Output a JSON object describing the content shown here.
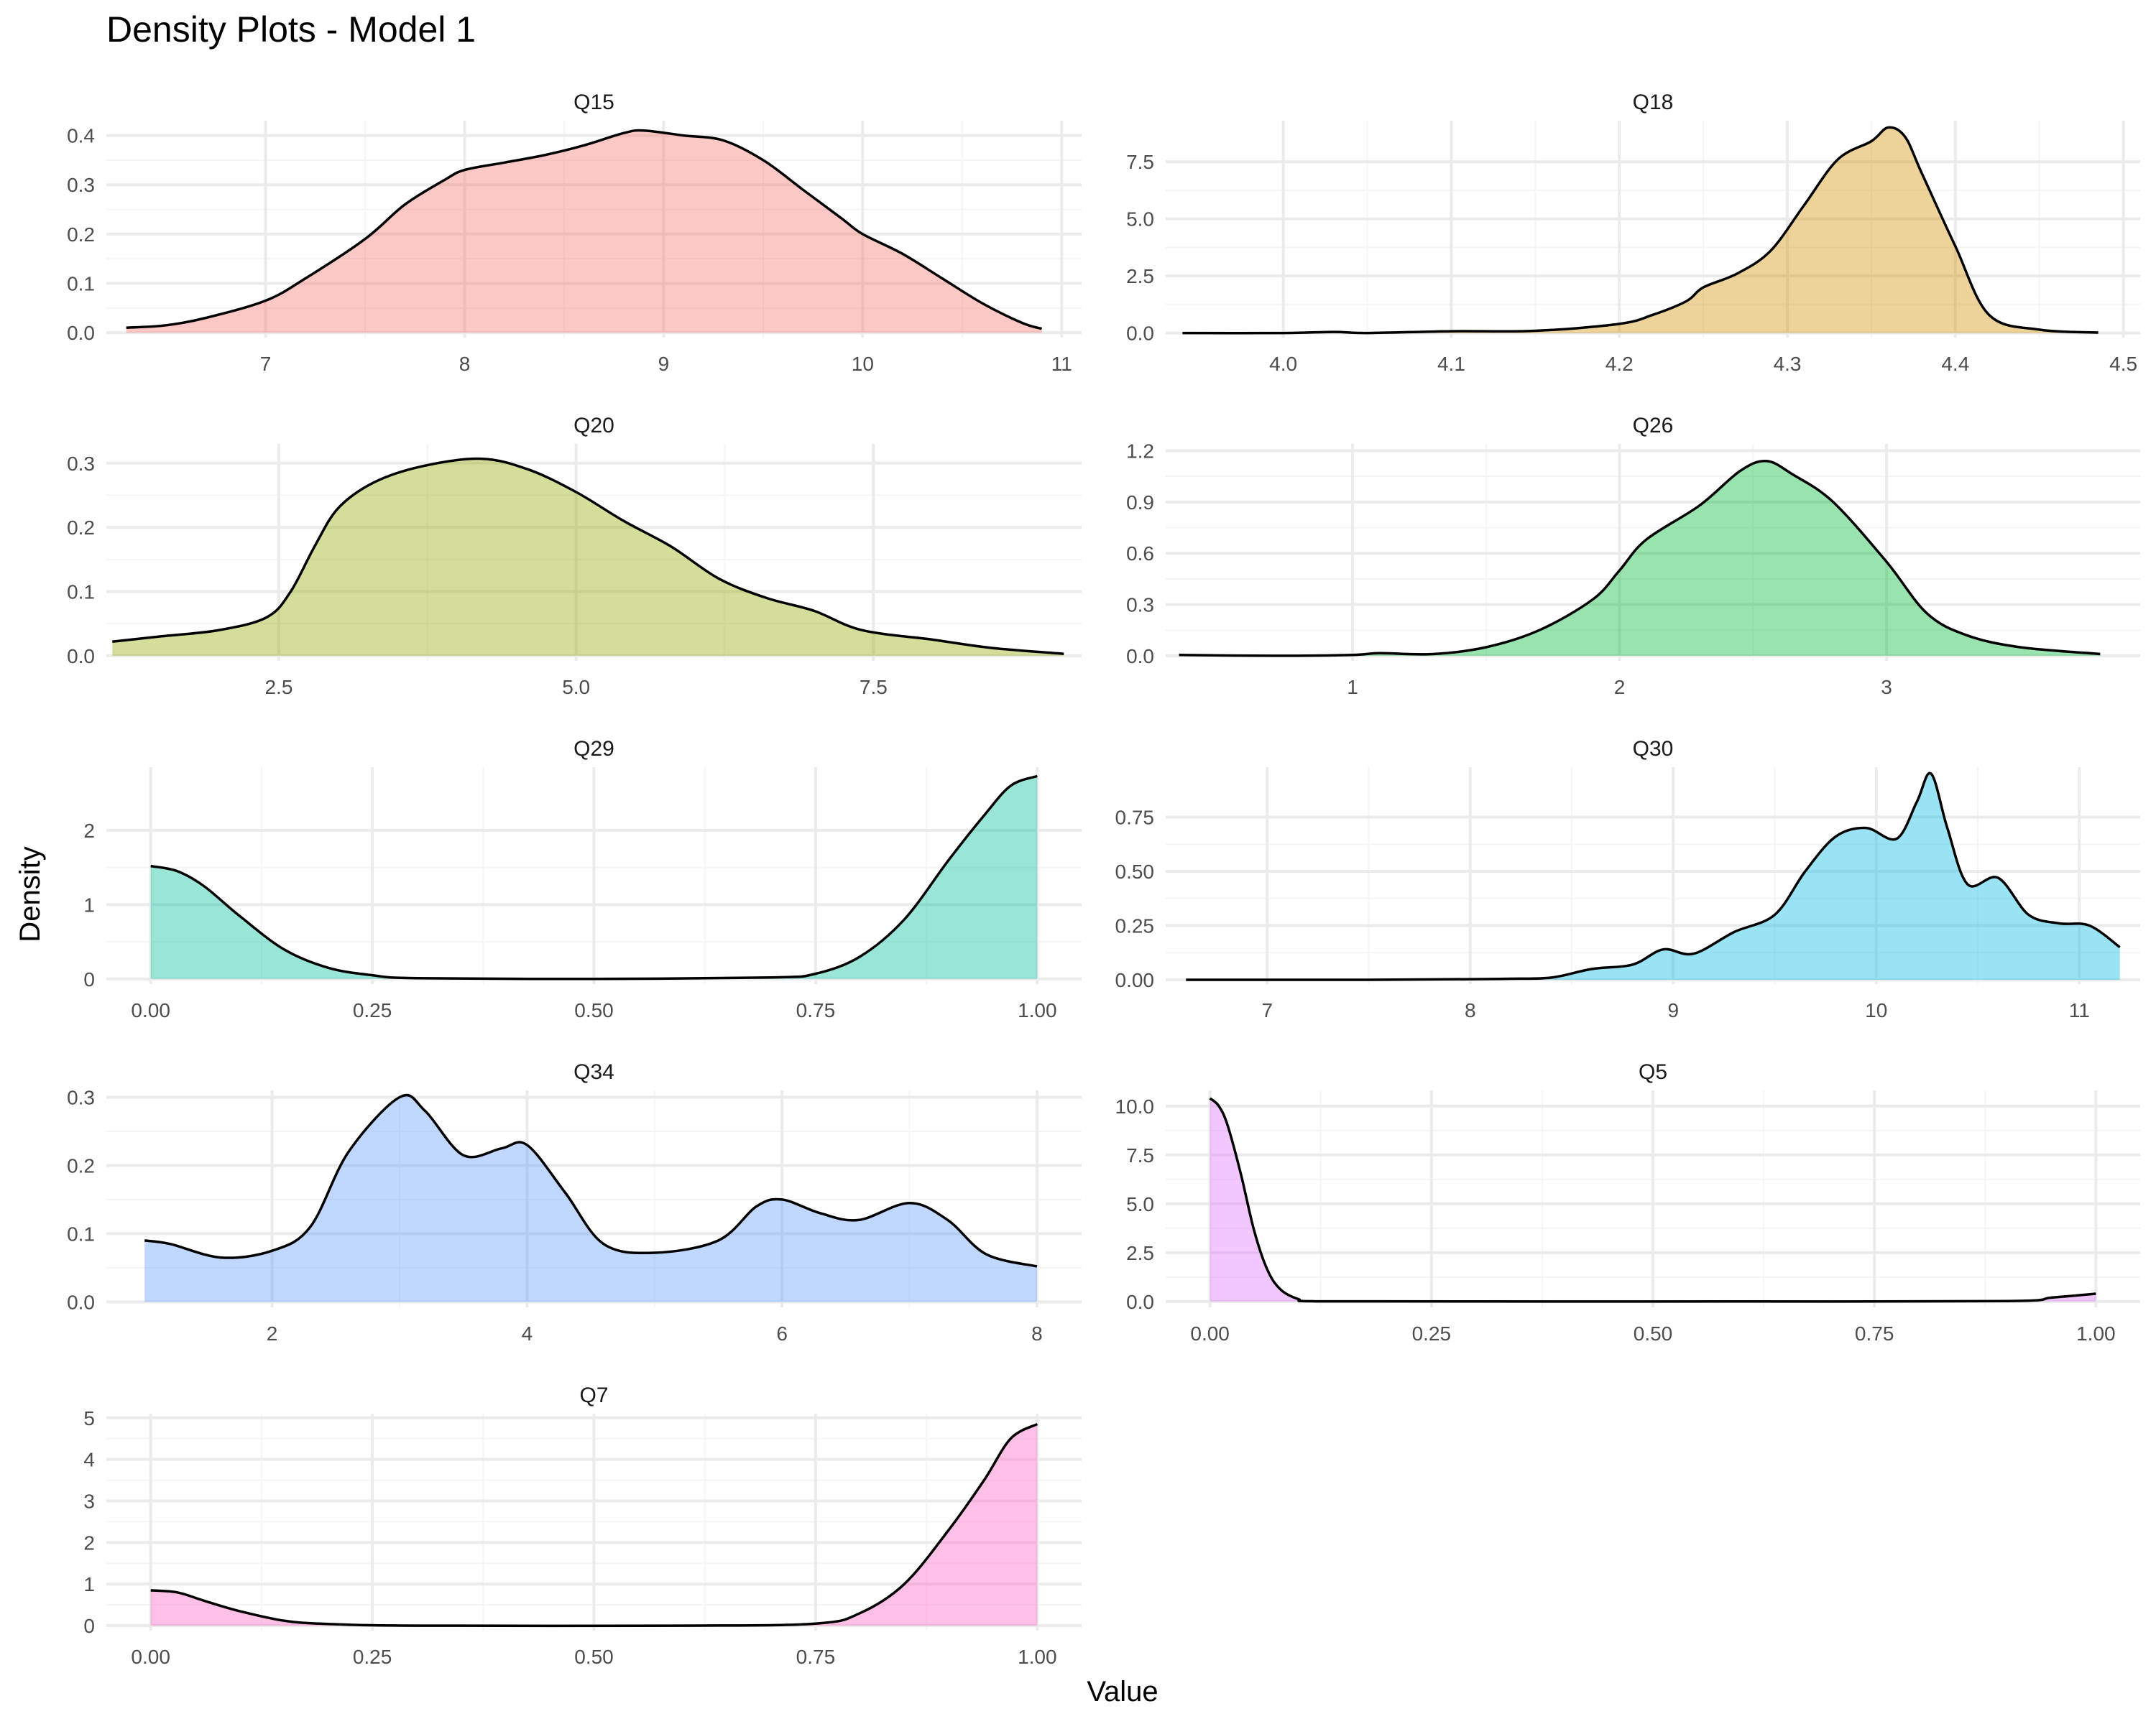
{
  "title": "Density Plots - Model 1",
  "xlabel": "Value",
  "ylabel": "Density",
  "style": {
    "outline": "#000000",
    "grid_major": "#ebebeb",
    "grid_minor": "#f5f5f5",
    "tick_text": "#4d4d4d",
    "title_text": "#000000",
    "fill_opacity": 0.4
  },
  "chart_data": [
    {
      "type": "area",
      "panel": "Q15",
      "color": "#F8766D",
      "xlim": [
        6.2,
        11.1
      ],
      "ylim": [
        -0.01,
        0.43
      ],
      "xticks": [
        7,
        8,
        9,
        10,
        11
      ],
      "xtick_labels": [
        "7",
        "8",
        "9",
        "10",
        "11"
      ],
      "yticks": [
        0,
        0.1,
        0.2,
        0.3,
        0.4
      ],
      "ytick_labels": [
        "0.0",
        "0.1",
        "0.2",
        "0.3",
        "0.4"
      ],
      "x": [
        6.3,
        6.5,
        6.7,
        7.0,
        7.2,
        7.5,
        7.7,
        7.9,
        8.0,
        8.2,
        8.4,
        8.6,
        8.8,
        8.9,
        9.1,
        9.3,
        9.5,
        9.7,
        9.9,
        10.0,
        10.2,
        10.4,
        10.6,
        10.8,
        10.9
      ],
      "y": [
        0.01,
        0.015,
        0.03,
        0.065,
        0.11,
        0.19,
        0.26,
        0.31,
        0.33,
        0.345,
        0.36,
        0.38,
        0.405,
        0.41,
        0.4,
        0.39,
        0.35,
        0.29,
        0.23,
        0.2,
        0.16,
        0.11,
        0.06,
        0.02,
        0.008
      ]
    },
    {
      "type": "area",
      "panel": "Q18",
      "color": "#D39200",
      "xlim": [
        3.93,
        4.51
      ],
      "ylim": [
        -0.2,
        9.3
      ],
      "xticks": [
        4.0,
        4.1,
        4.2,
        4.3,
        4.4,
        4.5
      ],
      "xtick_labels": [
        "4.0",
        "4.1",
        "4.2",
        "4.3",
        "4.4",
        "4.5"
      ],
      "yticks": [
        0,
        2.5,
        5.0,
        7.5
      ],
      "ytick_labels": [
        "0.0",
        "2.5",
        "5.0",
        "7.5"
      ],
      "x": [
        3.94,
        4.0,
        4.03,
        4.05,
        4.1,
        4.15,
        4.2,
        4.22,
        4.24,
        4.25,
        4.27,
        4.29,
        4.31,
        4.33,
        4.35,
        4.36,
        4.37,
        4.38,
        4.4,
        4.42,
        4.45,
        4.485
      ],
      "y": [
        0.0,
        0.0,
        0.05,
        0.0,
        0.08,
        0.1,
        0.4,
        0.8,
        1.4,
        2.0,
        2.6,
        3.6,
        5.6,
        7.6,
        8.4,
        9.0,
        8.6,
        7.0,
        3.8,
        0.8,
        0.15,
        0.02
      ]
    },
    {
      "type": "area",
      "panel": "Q20",
      "color": "#93AA00",
      "xlim": [
        1.05,
        9.25
      ],
      "ylim": [
        -0.008,
        0.33
      ],
      "xticks": [
        2.5,
        5.0,
        7.5
      ],
      "xtick_labels": [
        "2.5",
        "5.0",
        "7.5"
      ],
      "yticks": [
        0,
        0.1,
        0.2,
        0.3
      ],
      "ytick_labels": [
        "0.0",
        "0.1",
        "0.2",
        "0.3"
      ],
      "x": [
        1.1,
        1.5,
        2.0,
        2.4,
        2.6,
        2.8,
        3.0,
        3.3,
        3.7,
        4.2,
        4.6,
        5.0,
        5.4,
        5.8,
        6.2,
        6.6,
        7.0,
        7.4,
        8.0,
        8.5,
        9.1
      ],
      "y": [
        0.022,
        0.03,
        0.04,
        0.06,
        0.1,
        0.17,
        0.23,
        0.27,
        0.295,
        0.307,
        0.29,
        0.255,
        0.21,
        0.17,
        0.12,
        0.09,
        0.07,
        0.04,
        0.025,
        0.012,
        0.003
      ]
    },
    {
      "type": "area",
      "panel": "Q26",
      "color": "#00BA38",
      "xlim": [
        0.3,
        3.95
      ],
      "ylim": [
        -0.03,
        1.24
      ],
      "xticks": [
        1,
        2,
        3
      ],
      "xtick_labels": [
        "1",
        "2",
        "3"
      ],
      "yticks": [
        0,
        0.3,
        0.6,
        0.9,
        1.2
      ],
      "ytick_labels": [
        "0.0",
        "0.3",
        "0.6",
        "0.9",
        "1.2"
      ],
      "x": [
        0.35,
        0.7,
        1.0,
        1.1,
        1.3,
        1.5,
        1.7,
        1.9,
        2.0,
        2.1,
        2.3,
        2.45,
        2.55,
        2.65,
        2.8,
        3.0,
        3.15,
        3.3,
        3.5,
        3.8
      ],
      "y": [
        0.005,
        0.0,
        0.005,
        0.015,
        0.01,
        0.05,
        0.15,
        0.33,
        0.5,
        0.68,
        0.88,
        1.08,
        1.14,
        1.06,
        0.9,
        0.55,
        0.25,
        0.12,
        0.05,
        0.01
      ]
    },
    {
      "type": "area",
      "panel": "Q29",
      "color": "#00C19F",
      "xlim": [
        -0.05,
        1.05
      ],
      "ylim": [
        -0.07,
        2.85
      ],
      "xticks": [
        0.0,
        0.25,
        0.5,
        0.75,
        1.0
      ],
      "xtick_labels": [
        "0.00",
        "0.25",
        "0.50",
        "0.75",
        "1.00"
      ],
      "yticks": [
        0,
        1,
        2
      ],
      "ytick_labels": [
        "0",
        "1",
        "2"
      ],
      "x": [
        0.0,
        0.03,
        0.06,
        0.1,
        0.15,
        0.2,
        0.25,
        0.3,
        0.5,
        0.7,
        0.75,
        0.8,
        0.85,
        0.9,
        0.94,
        0.97,
        1.0
      ],
      "y": [
        1.52,
        1.45,
        1.25,
        0.85,
        0.4,
        0.15,
        0.05,
        0.01,
        0.0,
        0.02,
        0.07,
        0.3,
        0.8,
        1.6,
        2.2,
        2.6,
        2.73
      ]
    },
    {
      "type": "area",
      "panel": "Q30",
      "color": "#00B9E3",
      "xlim": [
        6.5,
        11.3
      ],
      "ylim": [
        -0.02,
        0.98
      ],
      "xticks": [
        7,
        8,
        9,
        10,
        11
      ],
      "xtick_labels": [
        "7",
        "8",
        "9",
        "10",
        "11"
      ],
      "yticks": [
        0,
        0.25,
        0.5,
        0.75
      ],
      "ytick_labels": [
        "0.00",
        "0.25",
        "0.50",
        "0.75"
      ],
      "x": [
        6.6,
        7.5,
        8.0,
        8.2,
        8.4,
        8.6,
        8.8,
        8.95,
        9.1,
        9.3,
        9.5,
        9.65,
        9.8,
        9.95,
        10.1,
        10.2,
        10.27,
        10.35,
        10.45,
        10.6,
        10.75,
        10.9,
        11.05,
        11.2
      ],
      "y": [
        0.0,
        0.0,
        0.003,
        0.005,
        0.01,
        0.05,
        0.07,
        0.14,
        0.12,
        0.22,
        0.3,
        0.5,
        0.66,
        0.7,
        0.65,
        0.82,
        0.95,
        0.7,
        0.44,
        0.47,
        0.3,
        0.26,
        0.25,
        0.15
      ]
    },
    {
      "type": "area",
      "panel": "Q34",
      "color": "#619CFF",
      "xlim": [
        0.7,
        8.35
      ],
      "ylim": [
        -0.008,
        0.31
      ],
      "xticks": [
        2,
        4,
        6,
        8
      ],
      "xtick_labels": [
        "2",
        "4",
        "6",
        "8"
      ],
      "yticks": [
        0,
        0.1,
        0.2,
        0.3
      ],
      "ytick_labels": [
        "0.0",
        "0.1",
        "0.2",
        "0.3"
      ],
      "x": [
        1.0,
        1.2,
        1.6,
        2.0,
        2.3,
        2.6,
        3.0,
        3.2,
        3.5,
        3.8,
        4.0,
        4.3,
        4.6,
        5.0,
        5.5,
        5.8,
        6.0,
        6.3,
        6.6,
        7.0,
        7.3,
        7.6,
        8.0
      ],
      "y": [
        0.09,
        0.085,
        0.065,
        0.075,
        0.11,
        0.22,
        0.3,
        0.28,
        0.215,
        0.225,
        0.23,
        0.16,
        0.085,
        0.072,
        0.09,
        0.14,
        0.15,
        0.13,
        0.12,
        0.145,
        0.12,
        0.07,
        0.052
      ]
    },
    {
      "type": "area",
      "panel": "Q5",
      "color": "#DB72FB",
      "xlim": [
        -0.05,
        1.05
      ],
      "ylim": [
        -0.3,
        10.8
      ],
      "xticks": [
        0.0,
        0.25,
        0.5,
        0.75,
        1.0
      ],
      "xtick_labels": [
        "0.00",
        "0.25",
        "0.50",
        "0.75",
        "1.00"
      ],
      "yticks": [
        0,
        2.5,
        5.0,
        7.5,
        10.0
      ],
      "ytick_labels": [
        "0.0",
        "2.5",
        "5.0",
        "7.5",
        "10.0"
      ],
      "x": [
        0.0,
        0.01,
        0.02,
        0.035,
        0.05,
        0.065,
        0.08,
        0.1,
        0.12,
        0.3,
        0.6,
        0.9,
        0.95,
        1.0
      ],
      "y": [
        10.4,
        10.0,
        9.0,
        6.5,
        3.6,
        1.6,
        0.6,
        0.12,
        0.01,
        0.0,
        0.0,
        0.02,
        0.2,
        0.4
      ]
    },
    {
      "type": "area",
      "panel": "Q7",
      "color": "#FF61C3",
      "xlim": [
        -0.05,
        1.05
      ],
      "ylim": [
        -0.12,
        5.1
      ],
      "xticks": [
        0.0,
        0.25,
        0.5,
        0.75,
        1.0
      ],
      "xtick_labels": [
        "0.00",
        "0.25",
        "0.50",
        "0.75",
        "1.00"
      ],
      "yticks": [
        0,
        1,
        2,
        3,
        4,
        5
      ],
      "ytick_labels": [
        "0",
        "1",
        "2",
        "3",
        "4",
        "5"
      ],
      "x": [
        0.0,
        0.03,
        0.06,
        0.1,
        0.15,
        0.2,
        0.3,
        0.6,
        0.75,
        0.8,
        0.85,
        0.9,
        0.94,
        0.97,
        1.0
      ],
      "y": [
        0.85,
        0.8,
        0.6,
        0.35,
        0.12,
        0.04,
        0.0,
        0.0,
        0.05,
        0.3,
        1.0,
        2.3,
        3.5,
        4.5,
        4.85
      ]
    }
  ]
}
